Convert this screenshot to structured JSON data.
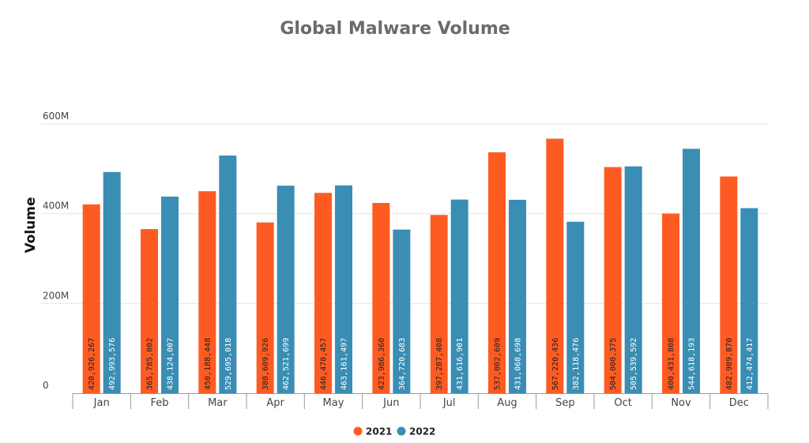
{
  "chart_data": {
    "type": "bar",
    "title": "Global Malware Volume",
    "xlabel": "",
    "ylabel": "Volume",
    "ylim": [
      0,
      600000000
    ],
    "yticks": [
      {
        "value": 0,
        "label": "0"
      },
      {
        "value": 200000000,
        "label": "200M"
      },
      {
        "value": 400000000,
        "label": "400M"
      },
      {
        "value": 600000000,
        "label": "600M"
      }
    ],
    "categories": [
      "Jan",
      "Feb",
      "Mar",
      "Apr",
      "May",
      "Jun",
      "Jul",
      "Aug",
      "Sep",
      "Oct",
      "Nov",
      "Dec"
    ],
    "series": [
      {
        "name": "2021",
        "color": "#fe5b22",
        "values": [
          420926267,
          365785002,
          450188448,
          380609926,
          446478457,
          423986360,
          397287408,
          537002609,
          567220436,
          504000375,
          400431808,
          482989870
        ],
        "labels": [
          "420,926,267",
          "365,785,002",
          "450,188,448",
          "380,609,926",
          "446,478,457",
          "423,986,360",
          "397,287,408",
          "537,002,609",
          "567,220,436",
          "504,000,375",
          "400,431,808",
          "482,989,870"
        ]
      },
      {
        "name": "2022",
        "color": "#3a8db3",
        "values": [
          492993576,
          438124007,
          529695018,
          462521699,
          463161497,
          364720683,
          431616901,
          431068698,
          382118476,
          505539592,
          544618193,
          412474417
        ],
        "labels": [
          "492,993,576",
          "438,124,007",
          "529,695,018",
          "462,521,699",
          "463,161,497",
          "364,720,683",
          "431,616,901",
          "431,068,698",
          "382,118,476",
          "505,539,592",
          "544,618,193",
          "412,474,417"
        ]
      }
    ],
    "grid": true,
    "legend": "bottom-center"
  }
}
